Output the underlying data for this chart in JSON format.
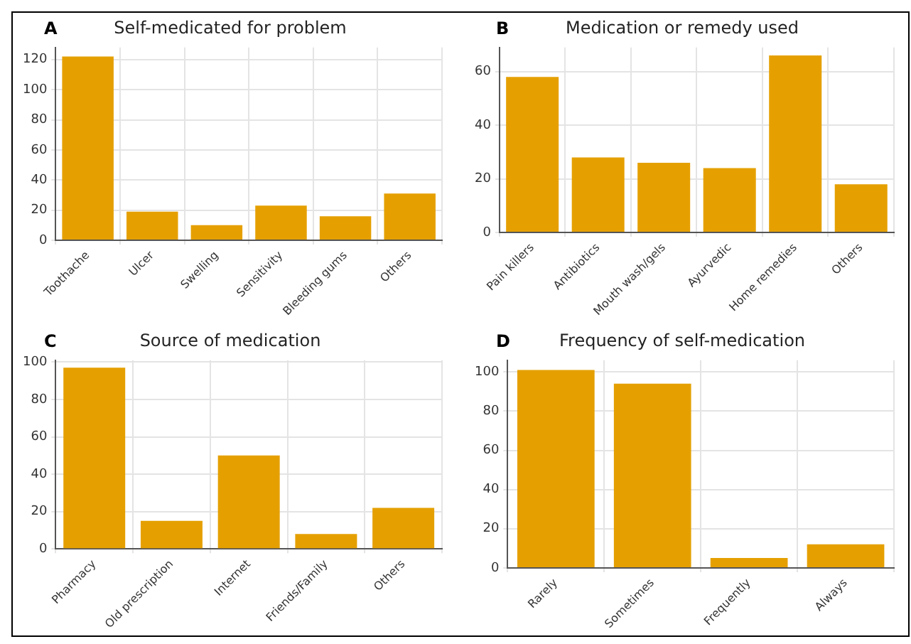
{
  "chart_data": [
    {
      "type": "bar",
      "title": "Self-medicated for problem",
      "annotations": [
        "A"
      ],
      "categories": [
        "Toothache",
        "Ulcer",
        "Swelling",
        "Sensitivity",
        "Bleeding gums",
        "Others"
      ],
      "values": [
        122,
        19,
        10,
        23,
        16,
        31
      ],
      "color": "#e5a000",
      "ylim": [
        0,
        128
      ],
      "yticks": [
        0,
        20,
        40,
        60,
        80,
        100,
        120
      ],
      "grid": true
    },
    {
      "type": "bar",
      "title": "Medication or remedy used",
      "annotations": [
        "B"
      ],
      "categories": [
        "Pain killers",
        "Antibiotics",
        "Mouth wash/gels",
        "Ayurvedic",
        "Home remedies",
        "Others"
      ],
      "values": [
        58,
        28,
        26,
        24,
        66,
        18
      ],
      "color": "#e5a000",
      "ylim": [
        0,
        69
      ],
      "yticks": [
        0,
        20,
        40,
        60
      ],
      "grid": true
    },
    {
      "type": "bar",
      "title": "Source of medication",
      "annotations": [
        "C"
      ],
      "categories": [
        "Pharmacy",
        "Old prescription",
        "Internet",
        "Friends/Family",
        "Others"
      ],
      "values": [
        97,
        15,
        50,
        8,
        22
      ],
      "color": "#e5a000",
      "ylim": [
        0,
        101
      ],
      "yticks": [
        0,
        20,
        40,
        60,
        80,
        100
      ],
      "grid": true
    },
    {
      "type": "bar",
      "title": "Frequency of self-medication",
      "annotations": [
        "D"
      ],
      "categories": [
        "Rarely",
        "Sometimes",
        "Frequently",
        "Always"
      ],
      "values": [
        101,
        94,
        5,
        12
      ],
      "color": "#e5a000",
      "ylim": [
        0,
        106
      ],
      "yticks": [
        0,
        20,
        40,
        60,
        80,
        100
      ],
      "grid": true
    }
  ]
}
